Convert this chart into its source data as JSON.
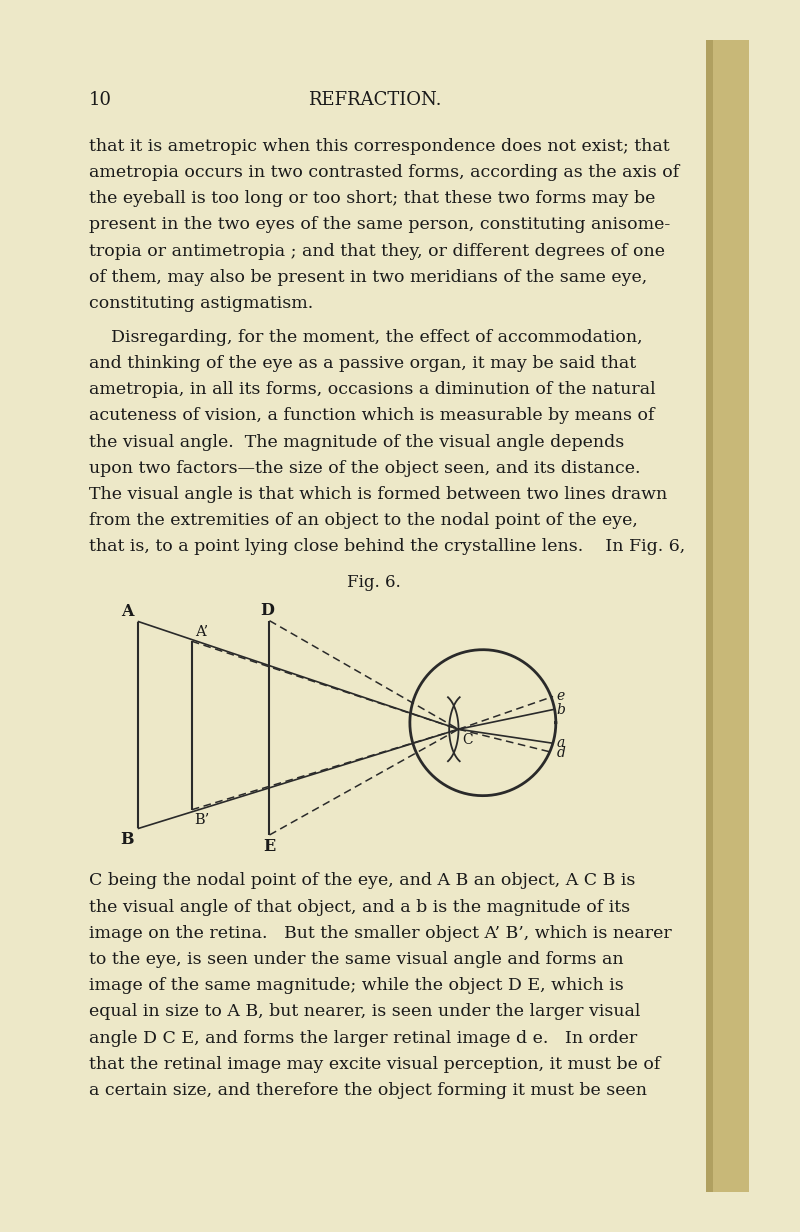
{
  "bg_color": "#EDE8C8",
  "page_number": "10",
  "header_title": "REFRACTION.",
  "fig_title": "Fig. 6.",
  "text_color": "#1a1a1a",
  "para1": "that it is ametropic when this correspondence does not exist; that\nametropia occurs in two contrasted forms, according as the axis of\nthe eyeball is too long or too short; that these two forms may be\npresent in the two eyes of the same person, constituting anisome-\ntropia or antimetropia ; and that they, or different degrees of one\nof them, may also be present in two meridians of the same eye,\nconstituting astigmatism.",
  "para2": "    Disregarding, for the moment, the effect of accommodation,\nand thinking of the eye as a passive organ, it may be said that\nametropia, in all its forms, occasions a diminution of the natural\nacuteness of vision, a function which is measurable by means of\nthe visual angle.  The magnitude of the visual angle depends\nupon two factors—the size of the object seen, and its distance.\nThe visual angle is that which is formed between two lines drawn\nfrom the extremities of an object to the nodal point of the eye,\nthat is, to a point lying close behind the crystalline lens.    In Fig. 6,",
  "para3": "C being the nodal point of the eye, and A B an object, A C B is\nthe visual angle of that object, and a b is the magnitude of its\nimage on the retina.   But the smaller object A’ B’, which is nearer\nto the eye, is seen under the same visual angle and forms an\nimage of the same magnitude; while the object D E, which is\nequal in size to A B, but nearer, is seen under the larger visual\nangle D C E, and forms the larger retinal image d e.   In order\nthat the retinal image may excite visual perception, it must be of\na certain size, and therefore the object forming it must be seen"
}
